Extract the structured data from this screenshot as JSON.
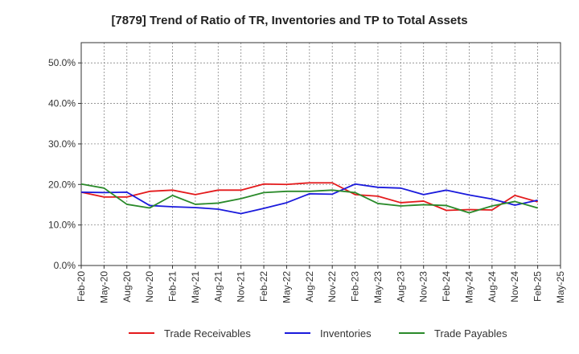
{
  "chart_data": {
    "type": "line",
    "title": "[7879]  Trend of Ratio of TR, Inventories and TP to Total Assets",
    "xlabel": "",
    "ylabel": "",
    "ylim": [
      0,
      0.55
    ],
    "y_ticks": [
      0.0,
      0.1,
      0.2,
      0.3,
      0.4,
      0.5
    ],
    "y_tick_labels": [
      "0.0%",
      "10.0%",
      "20.0%",
      "30.0%",
      "40.0%",
      "50.0%"
    ],
    "x_tick_labels": [
      "Feb-20",
      "May-20",
      "Aug-20",
      "Nov-20",
      "Feb-21",
      "May-21",
      "Aug-21",
      "Nov-21",
      "Feb-22",
      "May-22",
      "Aug-22",
      "Nov-22",
      "Feb-23",
      "May-23",
      "Aug-23",
      "Nov-23",
      "Feb-24",
      "May-24",
      "Aug-24",
      "Nov-24",
      "Feb-25",
      "May-25"
    ],
    "x": [
      "Feb-20",
      "May-20",
      "Aug-20",
      "Nov-20",
      "Feb-21",
      "May-21",
      "Aug-21",
      "Nov-21",
      "Feb-22",
      "May-22",
      "Aug-22",
      "Nov-22",
      "Feb-23",
      "May-23",
      "Aug-23",
      "Nov-23",
      "Feb-24",
      "May-24",
      "Aug-24",
      "Nov-24",
      "Feb-25"
    ],
    "grid": true,
    "legend_position": "bottom",
    "series": [
      {
        "name": "Trade Receivables",
        "color": "#e41a1c",
        "values": [
          0.181,
          0.169,
          0.169,
          0.183,
          0.186,
          0.175,
          0.186,
          0.186,
          0.201,
          0.2,
          0.204,
          0.204,
          0.175,
          0.171,
          0.155,
          0.159,
          0.136,
          0.138,
          0.137,
          0.173,
          0.157
        ]
      },
      {
        "name": "Inventories",
        "color": "#1a1adc",
        "values": [
          0.181,
          0.18,
          0.181,
          0.148,
          0.145,
          0.143,
          0.139,
          0.128,
          0.141,
          0.155,
          0.177,
          0.176,
          0.201,
          0.193,
          0.191,
          0.175,
          0.186,
          0.174,
          0.164,
          0.149,
          0.161
        ]
      },
      {
        "name": "Trade Payables",
        "color": "#2a8a2a",
        "values": [
          0.201,
          0.191,
          0.151,
          0.142,
          0.173,
          0.151,
          0.154,
          0.165,
          0.18,
          0.183,
          0.183,
          0.186,
          0.18,
          0.153,
          0.147,
          0.15,
          0.148,
          0.13,
          0.147,
          0.158,
          0.142
        ]
      }
    ]
  }
}
